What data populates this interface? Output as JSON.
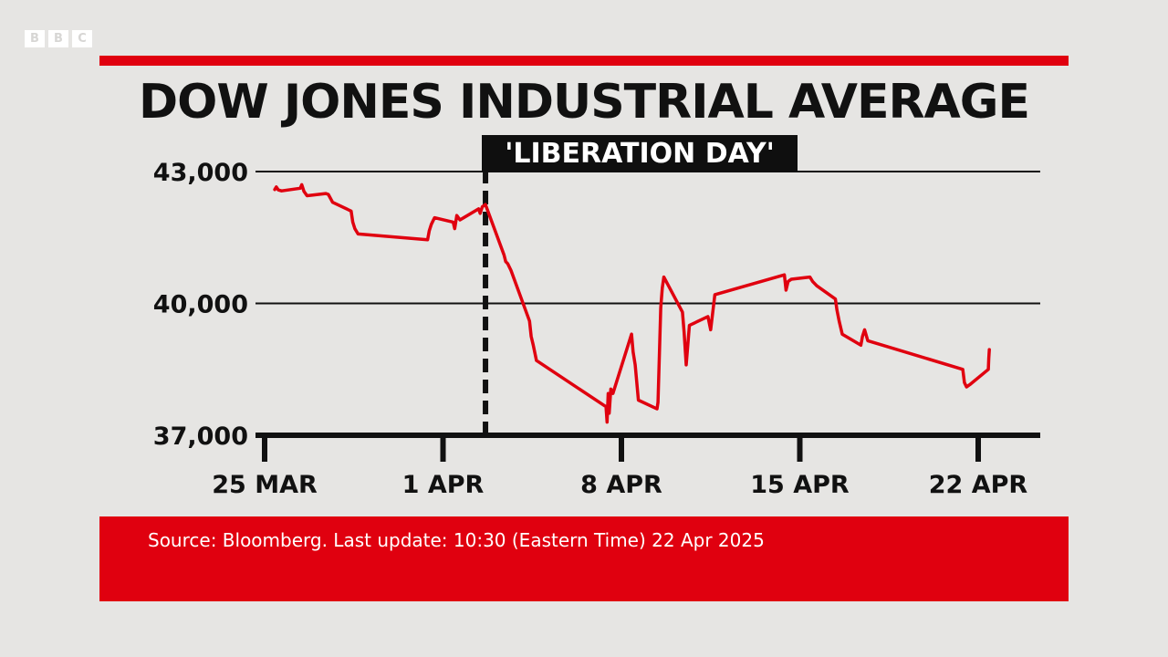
{
  "logo": {
    "letters": [
      "B",
      "B",
      "C"
    ]
  },
  "title": "DOW JONES INDUSTRIAL AVERAGE",
  "annotation": {
    "label": "'LIBERATION DAY'",
    "date": "2025-04-02T16:00"
  },
  "source": "Source: Bloomberg. Last update: 10:30 (Eastern Time) 22 Apr 2025",
  "colors": {
    "accent": "#e0000f",
    "line": "#e0000f",
    "text": "#111111",
    "background": "#e6e5e3"
  },
  "chart_data": {
    "type": "line",
    "title": "DOW JONES INDUSTRIAL AVERAGE",
    "xlabel": "",
    "ylabel": "",
    "ylim": [
      37000,
      43000
    ],
    "yticks": [
      43000,
      40000,
      37000
    ],
    "ytick_labels": [
      "43,000",
      "40,000",
      "37,000"
    ],
    "xticks": [
      "2025-03-25",
      "2025-04-01",
      "2025-04-08",
      "2025-04-15",
      "2025-04-22"
    ],
    "xtick_labels": [
      "25 MAR",
      "1 APR",
      "8 APR",
      "15 APR",
      "22 APR"
    ],
    "grid": "horizontal",
    "series": [
      {
        "points": [
          [
            "2025-03-25T09:30",
            42590
          ],
          [
            "2025-03-25T11:00",
            42650
          ],
          [
            "2025-03-25T13:00",
            42580
          ],
          [
            "2025-03-25T16:00",
            42560
          ],
          [
            "2025-03-26T09:30",
            42620
          ],
          [
            "2025-03-26T11:00",
            42700
          ],
          [
            "2025-03-26T13:00",
            42550
          ],
          [
            "2025-03-26T16:00",
            42450
          ],
          [
            "2025-03-27T09:30",
            42500
          ],
          [
            "2025-03-27T12:00",
            42480
          ],
          [
            "2025-03-27T16:00",
            42300
          ],
          [
            "2025-03-28T09:30",
            42100
          ],
          [
            "2025-03-28T11:00",
            41850
          ],
          [
            "2025-03-28T13:00",
            41700
          ],
          [
            "2025-03-28T16:00",
            41580
          ],
          [
            "2025-03-31T09:30",
            41450
          ],
          [
            "2025-03-31T11:00",
            41650
          ],
          [
            "2025-03-31T13:00",
            41800
          ],
          [
            "2025-03-31T16:00",
            41950
          ],
          [
            "2025-04-01T09:30",
            41850
          ],
          [
            "2025-04-01T11:00",
            41700
          ],
          [
            "2025-04-01T13:00",
            42000
          ],
          [
            "2025-04-01T16:00",
            41900
          ],
          [
            "2025-04-02T09:30",
            42150
          ],
          [
            "2025-04-02T11:00",
            42050
          ],
          [
            "2025-04-02T13:00",
            42200
          ],
          [
            "2025-04-02T16:00",
            42250
          ],
          [
            "2025-04-03T09:30",
            41100
          ],
          [
            "2025-04-03T11:00",
            40950
          ],
          [
            "2025-04-03T13:00",
            40900
          ],
          [
            "2025-04-03T16:00",
            40750
          ],
          [
            "2025-04-04T09:30",
            39600
          ],
          [
            "2025-04-04T11:00",
            39250
          ],
          [
            "2025-04-04T13:00",
            39050
          ],
          [
            "2025-04-04T16:00",
            38700
          ],
          [
            "2025-04-07T09:30",
            37650
          ],
          [
            "2025-04-07T10:30",
            37300
          ],
          [
            "2025-04-07T11:30",
            37950
          ],
          [
            "2025-04-07T12:30",
            37500
          ],
          [
            "2025-04-07T14:00",
            38050
          ],
          [
            "2025-04-07T16:00",
            37950
          ],
          [
            "2025-04-08T09:30",
            39300
          ],
          [
            "2025-04-08T11:00",
            38900
          ],
          [
            "2025-04-08T13:00",
            38600
          ],
          [
            "2025-04-08T16:00",
            37800
          ],
          [
            "2025-04-09T09:30",
            37600
          ],
          [
            "2025-04-09T10:30",
            37750
          ],
          [
            "2025-04-09T13:00",
            39900
          ],
          [
            "2025-04-09T14:30",
            40350
          ],
          [
            "2025-04-09T16:00",
            40600
          ],
          [
            "2025-04-10T09:30",
            39800
          ],
          [
            "2025-04-10T11:00",
            39350
          ],
          [
            "2025-04-10T13:00",
            38600
          ],
          [
            "2025-04-10T16:00",
            39500
          ],
          [
            "2025-04-11T09:30",
            39700
          ],
          [
            "2025-04-11T12:00",
            39400
          ],
          [
            "2025-04-11T16:00",
            40200
          ],
          [
            "2025-04-14T09:30",
            40650
          ],
          [
            "2025-04-14T11:00",
            40300
          ],
          [
            "2025-04-14T13:00",
            40500
          ],
          [
            "2025-04-14T16:00",
            40550
          ],
          [
            "2025-04-15T09:30",
            40600
          ],
          [
            "2025-04-15T12:00",
            40500
          ],
          [
            "2025-04-15T16:00",
            40400
          ],
          [
            "2025-04-16T09:30",
            40100
          ],
          [
            "2025-04-16T11:00",
            39850
          ],
          [
            "2025-04-16T13:00",
            39600
          ],
          [
            "2025-04-16T16:00",
            39300
          ],
          [
            "2025-04-17T09:30",
            39050
          ],
          [
            "2025-04-17T11:00",
            39250
          ],
          [
            "2025-04-17T13:00",
            39400
          ],
          [
            "2025-04-17T16:00",
            39150
          ],
          [
            "2025-04-21T09:30",
            38500
          ],
          [
            "2025-04-21T11:00",
            38200
          ],
          [
            "2025-04-21T13:00",
            38100
          ],
          [
            "2025-04-21T16:00",
            38150
          ],
          [
            "2025-04-22T09:30",
            38500
          ],
          [
            "2025-04-22T10:00",
            38750
          ],
          [
            "2025-04-22T10:30",
            38950
          ]
        ]
      }
    ]
  }
}
